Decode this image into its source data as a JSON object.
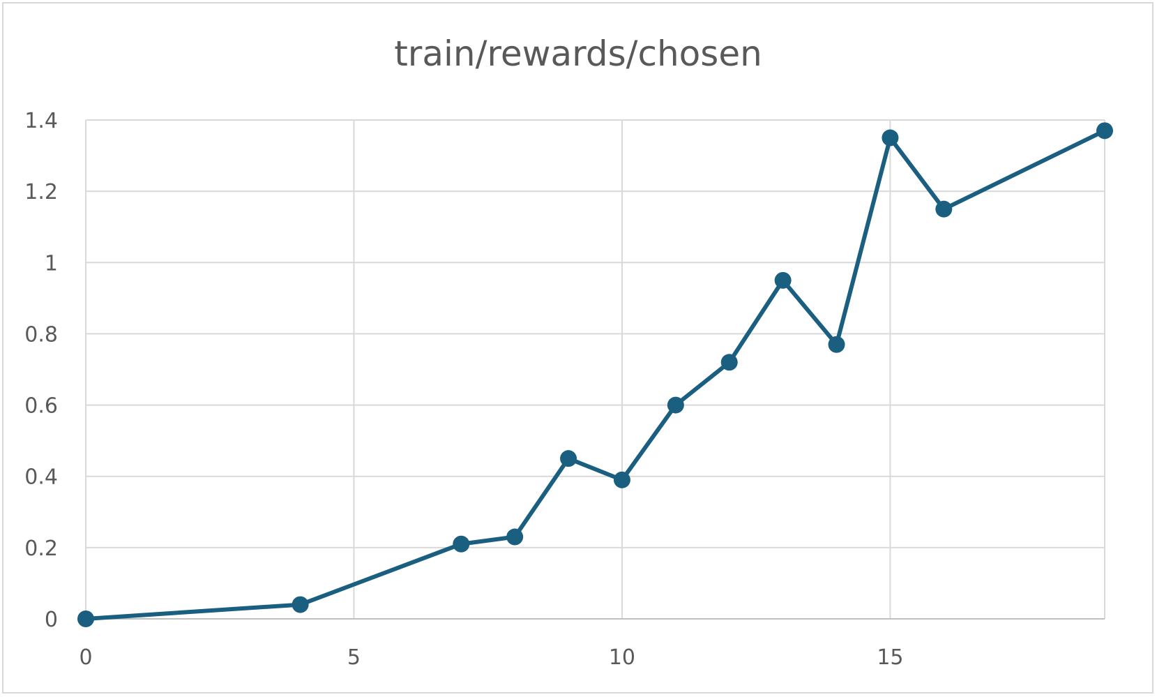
{
  "chart_data": {
    "type": "scatter",
    "title": "train/rewards/chosen",
    "xlabel": "",
    "ylabel": "",
    "xlim": [
      0,
      19
    ],
    "ylim": [
      0,
      1.4
    ],
    "grid": true,
    "x_ticks": [
      {
        "value": 0,
        "label": "0"
      },
      {
        "value": 5,
        "label": "5"
      },
      {
        "value": 10,
        "label": "10"
      },
      {
        "value": 15,
        "label": "15"
      }
    ],
    "y_ticks": [
      {
        "value": 0,
        "label": "0"
      },
      {
        "value": 0.2,
        "label": "0.2"
      },
      {
        "value": 0.4,
        "label": "0.4"
      },
      {
        "value": 0.6,
        "label": "0.6"
      },
      {
        "value": 0.8,
        "label": "0.8"
      },
      {
        "value": 1,
        "label": "1"
      },
      {
        "value": 1.2,
        "label": "1.2"
      },
      {
        "value": 1.4,
        "label": "1.4"
      }
    ],
    "series": [
      {
        "color": "#1a5e80",
        "points": [
          {
            "x": 0,
            "y": 0
          },
          {
            "x": 4,
            "y": 0.04
          },
          {
            "x": 7,
            "y": 0.21
          },
          {
            "x": 8,
            "y": 0.23
          },
          {
            "x": 9,
            "y": 0.45
          },
          {
            "x": 10,
            "y": 0.39
          },
          {
            "x": 11,
            "y": 0.6
          },
          {
            "x": 12,
            "y": 0.72
          },
          {
            "x": 13,
            "y": 0.95
          },
          {
            "x": 14,
            "y": 0.77
          },
          {
            "x": 15,
            "y": 1.35
          },
          {
            "x": 16,
            "y": 1.15
          },
          {
            "x": 19,
            "y": 1.37
          }
        ]
      }
    ],
    "colors": {
      "grid": "#d9d9d9",
      "axis": "#bfbfbf",
      "text": "#595959"
    }
  }
}
